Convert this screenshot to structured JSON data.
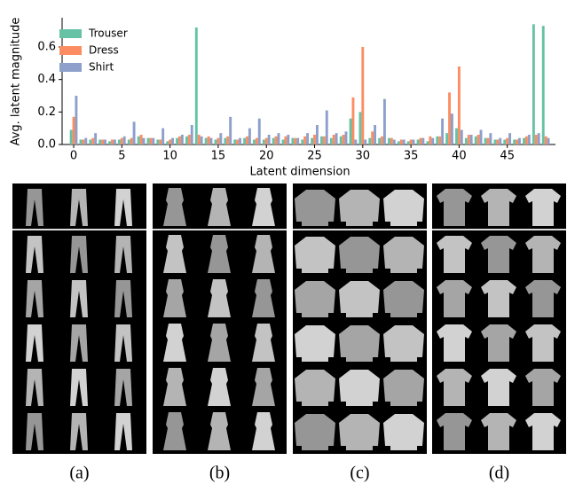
{
  "chart_data": {
    "type": "bar",
    "xlabel": "Latent dimension",
    "ylabel": "Avg. latent magnitude",
    "xlim": [
      -1.2,
      50
    ],
    "ylim": [
      0,
      0.78
    ],
    "xticks": [
      0,
      5,
      10,
      15,
      20,
      25,
      30,
      35,
      40,
      45
    ],
    "yticks": [
      {
        "value": 0,
        "label": "0.0"
      },
      0.2,
      0.4,
      0.6
    ],
    "legend": "upper left",
    "series": [
      {
        "name": "Trouser",
        "color": "#66c2a5",
        "values": [
          0.09,
          0.03,
          0.03,
          0.03,
          0.02,
          0.03,
          0.03,
          0.05,
          0.04,
          0.03,
          0.02,
          0.04,
          0.05,
          0.72,
          0.04,
          0.03,
          0.04,
          0.03,
          0.04,
          0.03,
          0.03,
          0.04,
          0.03,
          0.04,
          0.03,
          0.04,
          0.05,
          0.04,
          0.05,
          0.16,
          0.2,
          0.04,
          0.04,
          0.04,
          0.02,
          0.02,
          0.03,
          0.02,
          0.05,
          0.07,
          0.1,
          0.04,
          0.05,
          0.04,
          0.03,
          0.03,
          0.03,
          0.04,
          0.74,
          0.73
        ]
      },
      {
        "name": "Dress",
        "color": "#fc8d62",
        "values": [
          0.17,
          0.03,
          0.04,
          0.03,
          0.03,
          0.04,
          0.04,
          0.06,
          0.04,
          0.03,
          0.03,
          0.05,
          0.06,
          0.06,
          0.05,
          0.04,
          0.05,
          0.03,
          0.05,
          0.04,
          0.04,
          0.05,
          0.05,
          0.04,
          0.05,
          0.06,
          0.05,
          0.06,
          0.06,
          0.29,
          0.6,
          0.08,
          0.05,
          0.04,
          0.03,
          0.03,
          0.04,
          0.05,
          0.05,
          0.32,
          0.48,
          0.06,
          0.06,
          0.04,
          0.03,
          0.04,
          0.03,
          0.05,
          0.06,
          0.05
        ]
      },
      {
        "name": "Shirt",
        "color": "#8da0cb",
        "values": [
          0.3,
          0.04,
          0.07,
          0.03,
          0.03,
          0.05,
          0.14,
          0.04,
          0.04,
          0.1,
          0.04,
          0.06,
          0.12,
          0.05,
          0.04,
          0.07,
          0.17,
          0.04,
          0.1,
          0.16,
          0.06,
          0.07,
          0.06,
          0.04,
          0.07,
          0.12,
          0.21,
          0.07,
          0.08,
          0.03,
          0.03,
          0.12,
          0.28,
          0.03,
          0.03,
          0.03,
          0.04,
          0.04,
          0.16,
          0.19,
          0.09,
          0.06,
          0.09,
          0.07,
          0.04,
          0.07,
          0.04,
          0.06,
          0.07,
          0.04
        ]
      }
    ]
  },
  "panels": {
    "labels": [
      "(a)",
      "(b)",
      "(c)",
      "(d)"
    ]
  }
}
